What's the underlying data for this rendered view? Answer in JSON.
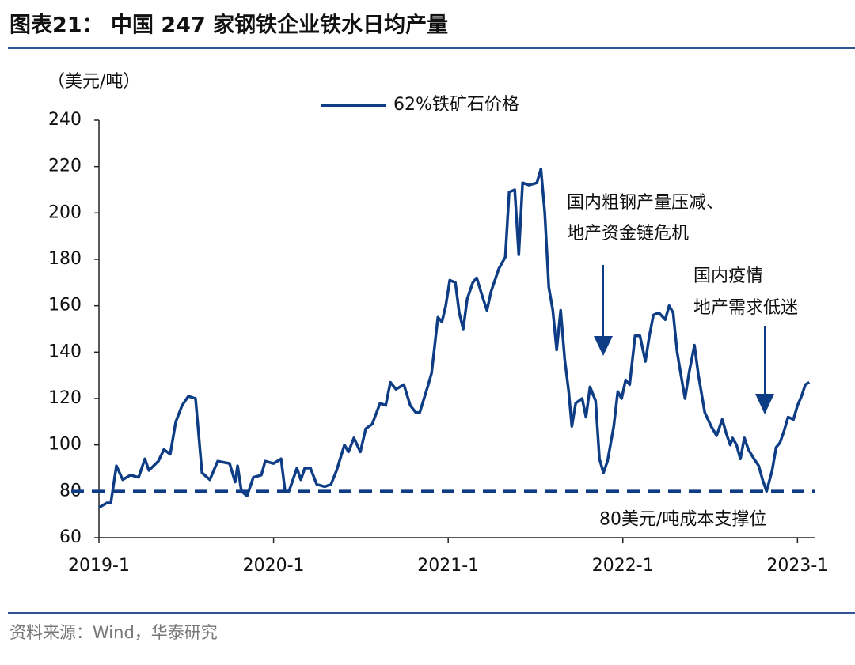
{
  "chart_data": {
    "type": "line",
    "title": "图表21： 中国 247 家钢铁企业铁水日均产量",
    "y_label": "（美元/吨）",
    "source": "资料来源：Wind，华泰研究",
    "xlim": [
      2019,
      2023.08
    ],
    "xticks": [
      {
        "value": 2019,
        "label": "2019-1"
      },
      {
        "value": 2020,
        "label": "2020-1"
      },
      {
        "value": 2021,
        "label": "2021-1"
      },
      {
        "value": 2022,
        "label": "2022-1"
      },
      {
        "value": 2023,
        "label": "2023-1"
      }
    ],
    "ylim": [
      60,
      240
    ],
    "yticks": [
      60,
      80,
      100,
      120,
      140,
      160,
      180,
      200,
      220,
      240
    ],
    "legend": "top",
    "reference_line": {
      "value": 80,
      "label": "80美元/吨成本支撑位",
      "color": "#0f3d85"
    },
    "annotations": [
      {
        "lines": [
          "国内粗钢产量压减、",
          "地产资金链危机"
        ]
      },
      {
        "lines": [
          "国内疫情",
          "地产需求低迷"
        ]
      }
    ],
    "series": [
      {
        "name": "62%铁矿石价格",
        "color": "#0f3d85",
        "x": [
          2019.0,
          2019.045,
          2019.068,
          2019.1,
          2019.136,
          2019.181,
          2019.227,
          2019.263,
          2019.286,
          2019.34,
          2019.372,
          2019.408,
          2019.44,
          2019.476,
          2019.512,
          2019.553,
          2019.59,
          2019.635,
          2019.68,
          2019.748,
          2019.78,
          2019.794,
          2019.816,
          2019.848,
          2019.884,
          2019.93,
          2019.952,
          2020.0,
          2020.043,
          2020.066,
          2020.088,
          2020.134,
          2020.156,
          2020.179,
          2020.211,
          2020.247,
          2020.293,
          2020.329,
          2020.361,
          2020.406,
          2020.429,
          2020.46,
          2020.497,
          2020.528,
          2020.565,
          2020.61,
          2020.642,
          2020.669,
          2020.701,
          2020.746,
          2020.783,
          2020.814,
          2020.837,
          2020.882,
          2020.905,
          2020.941,
          2020.964,
          2020.986,
          2021.009,
          2021.041,
          2021.063,
          2021.086,
          2021.109,
          2021.141,
          2021.163,
          2021.2,
          2021.222,
          2021.245,
          2021.29,
          2021.327,
          2021.349,
          2021.381,
          2021.404,
          2021.426,
          2021.463,
          2021.508,
          2021.531,
          2021.553,
          2021.576,
          2021.599,
          2021.621,
          2021.644,
          2021.667,
          2021.69,
          2021.708,
          2021.73,
          2021.767,
          2021.789,
          2021.812,
          2021.844,
          2021.866,
          2021.889,
          2021.912,
          2021.948,
          2021.971,
          2021.993,
          2022.016,
          2022.039,
          2022.07,
          2022.098,
          2022.129,
          2022.152,
          2022.175,
          2022.206,
          2022.243,
          2022.265,
          2022.288,
          2022.311,
          2022.333,
          2022.356,
          2022.379,
          2022.41,
          2022.433,
          2022.469,
          2022.506,
          2022.537,
          2022.569,
          2022.592,
          2022.615,
          2022.628,
          2022.651,
          2022.673,
          2022.696,
          2022.719,
          2022.751,
          2022.778,
          2022.8,
          2022.823,
          2022.855,
          2022.878,
          2022.9,
          2022.923,
          2022.946,
          2022.977,
          2023.0,
          2023.023,
          2023.045,
          2023.068
        ],
        "values": [
          73,
          75,
          75,
          91,
          85,
          87,
          86,
          94,
          89,
          93,
          98,
          96,
          110,
          117,
          121,
          120,
          88,
          85,
          93,
          92,
          84,
          91,
          80,
          78,
          86,
          87,
          93,
          92,
          94,
          80,
          80,
          90,
          85,
          90,
          90,
          83,
          82,
          83,
          89,
          100,
          97,
          103,
          97,
          107,
          109,
          118,
          117,
          127,
          124,
          126,
          117,
          114,
          114,
          125,
          131,
          155,
          153,
          160,
          171,
          170,
          157,
          150,
          163,
          170,
          172,
          163,
          158,
          166,
          176,
          181,
          209,
          210,
          182,
          213,
          212,
          213,
          219,
          200,
          168,
          158,
          141,
          158,
          137,
          123,
          108,
          118,
          120,
          112,
          125,
          119,
          94,
          88,
          93,
          108,
          123,
          120,
          128,
          126,
          147,
          147,
          136,
          147,
          156,
          157,
          154,
          160,
          157,
          140,
          130,
          120,
          131,
          143,
          130,
          114,
          108,
          104,
          111,
          105,
          100,
          103,
          100,
          94,
          103,
          98,
          94,
          91,
          85,
          80,
          89,
          99,
          101,
          106,
          112,
          111,
          117,
          121,
          126,
          127
        ]
      }
    ]
  }
}
